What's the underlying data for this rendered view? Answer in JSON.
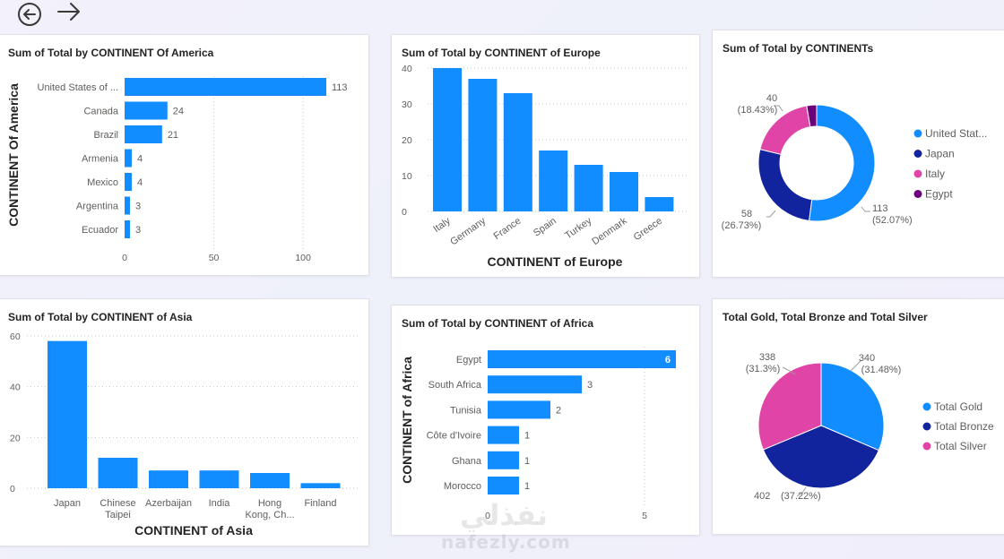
{
  "nav": {
    "back_icon": "back-arrow-icon",
    "forward_icon": "forward-arrow-icon"
  },
  "colors": {
    "bar": "#118dff",
    "japan": "#12239e",
    "italy": "#e044a7",
    "egypt": "#6b007b",
    "gridline": "#c8c6c4"
  },
  "watermark": {
    "arabic": "نفذلي",
    "latin": "nafezly.com"
  },
  "chart_data": [
    {
      "id": "america",
      "type": "bar",
      "orientation": "horizontal",
      "title": "Sum of Total by CONTINENT Of America",
      "ylabel": "CONTINENT Of America",
      "xlabel": "",
      "categories": [
        "United States of ...",
        "Canada",
        "Brazil",
        "Armenia",
        "Mexico",
        "Argentina",
        "Ecuador"
      ],
      "values": [
        113,
        24,
        21,
        4,
        4,
        3,
        3
      ],
      "data_labels": [
        "113",
        "24",
        "21",
        "4",
        "4",
        "3",
        "3"
      ],
      "xticks": [
        "0",
        "50",
        "100"
      ],
      "xlim": [
        0,
        113
      ],
      "grid": true
    },
    {
      "id": "europe",
      "type": "bar",
      "orientation": "vertical",
      "title": "Sum of Total by CONTINENT of Europe",
      "xlabel": "CONTINENT of Europe",
      "ylabel": "",
      "categories": [
        "Italy",
        "Germany",
        "France",
        "Spain",
        "Turkey",
        "Denmark",
        "Greece"
      ],
      "values": [
        40,
        37,
        33,
        17,
        13,
        11,
        4
      ],
      "yticks": [
        "0",
        "10",
        "20",
        "30",
        "40"
      ],
      "ylim": [
        0,
        40
      ],
      "grid": true
    },
    {
      "id": "continents",
      "type": "pie",
      "donut": true,
      "title": "Sum of Total by CONTINENTs",
      "categories": [
        "United Stat...",
        "Japan",
        "Italy",
        "Egypt"
      ],
      "values": [
        113,
        58,
        40,
        6
      ],
      "labels": [
        {
          "value": "113",
          "percent": "(52.07%)"
        },
        {
          "value": "58",
          "percent": "(26.73%)"
        },
        {
          "value": "40",
          "percent": "(18.43%)"
        }
      ],
      "legend": "right"
    },
    {
      "id": "asia",
      "type": "bar",
      "orientation": "vertical",
      "title": "Sum of Total by CONTINENT of Asia",
      "xlabel": "CONTINENT of Asia",
      "ylabel": "",
      "categories": [
        [
          "Japan"
        ],
        [
          "Chinese",
          "Taipei"
        ],
        [
          "Azerbaijan"
        ],
        [
          "India"
        ],
        [
          "Hong",
          "Kong, Ch..."
        ],
        [
          "Finland"
        ]
      ],
      "values": [
        58,
        12,
        7,
        7,
        6,
        2
      ],
      "yticks": [
        "0",
        "20",
        "40",
        "60"
      ],
      "ylim": [
        0,
        60
      ],
      "grid": true
    },
    {
      "id": "africa",
      "type": "bar",
      "orientation": "horizontal",
      "title": "Sum of Total by CONTINENT of Africa",
      "ylabel": "CONTINENT of Africa",
      "xlabel": "",
      "categories": [
        "Egypt",
        "South Africa",
        "Tunisia",
        "Côte d'Ivoire",
        "Ghana",
        "Morocco"
      ],
      "values": [
        6,
        3,
        2,
        1,
        1,
        1
      ],
      "data_labels": [
        "6",
        "3",
        "2",
        "1",
        "1",
        "1"
      ],
      "xticks": [
        "0",
        "5"
      ],
      "xlim": [
        0,
        6
      ],
      "grid": true
    },
    {
      "id": "medals",
      "type": "pie",
      "donut": false,
      "title": "Total Gold, Total Bronze and Total Silver",
      "categories": [
        "Total Gold",
        "Total Bronze",
        "Total Silver"
      ],
      "values": [
        340,
        402,
        338
      ],
      "labels": [
        {
          "value": "340",
          "percent": "(31.48%)"
        },
        {
          "value": "402",
          "percent": "(37.22%)"
        },
        {
          "value": "338",
          "percent": "(31.3%)"
        }
      ],
      "legend": "right"
    }
  ]
}
